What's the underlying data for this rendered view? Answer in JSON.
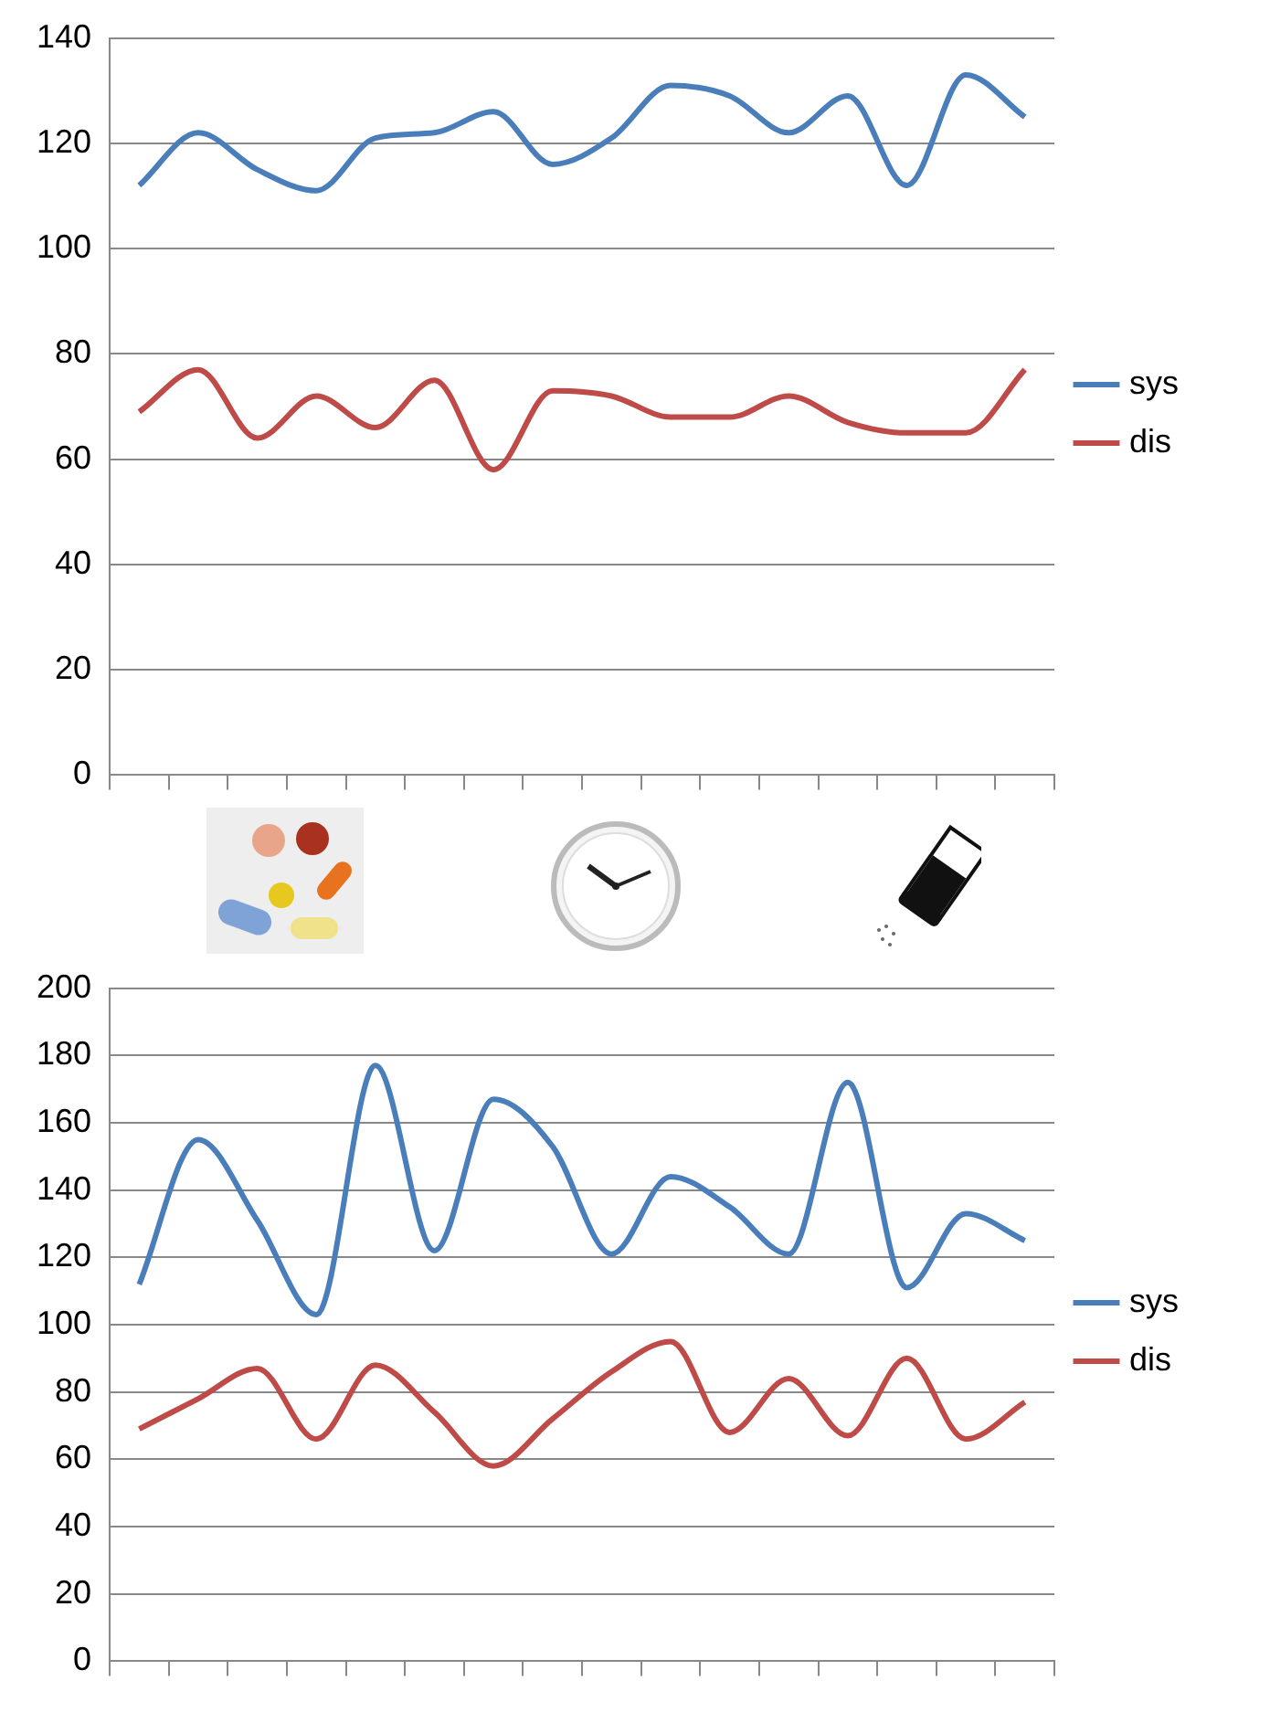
{
  "chart_data": [
    {
      "type": "line",
      "categories": [
        null,
        null,
        null,
        null,
        null,
        null,
        null,
        null,
        null,
        null,
        null,
        null,
        null,
        null,
        null,
        null
      ],
      "series": [
        {
          "name": "sys",
          "color": "#4a7ebb",
          "values": [
            112,
            122,
            115,
            111,
            121,
            122,
            126,
            116,
            121,
            131,
            129,
            122,
            129,
            112,
            133,
            125
          ]
        },
        {
          "name": "dis",
          "color": "#be4b48",
          "values": [
            69,
            77,
            64,
            72,
            66,
            75,
            58,
            73,
            72,
            68,
            68,
            72,
            67,
            65,
            65,
            77
          ]
        }
      ],
      "ylim": [
        0,
        140
      ],
      "yticks": [
        0,
        20,
        40,
        60,
        80,
        100,
        120,
        140
      ],
      "grid": "y",
      "legend": "right",
      "marker": "none",
      "tick_labels": "y"
    },
    {
      "type": "line",
      "categories": [
        null,
        null,
        null,
        null,
        null,
        null,
        null,
        null,
        null,
        null,
        null,
        null,
        null,
        null,
        null,
        null
      ],
      "series": [
        {
          "name": "sys",
          "color": "#4a7ebb",
          "values": [
            112,
            155,
            131,
            103,
            177,
            122,
            167,
            153,
            121,
            144,
            135,
            121,
            172,
            111,
            133,
            125
          ]
        },
        {
          "name": "dis",
          "color": "#be4b48",
          "values": [
            69,
            78,
            87,
            66,
            88,
            74,
            58,
            72,
            86,
            95,
            68,
            84,
            67,
            90,
            66,
            77
          ]
        }
      ],
      "ylim": [
        0,
        200
      ],
      "yticks": [
        0,
        20,
        40,
        60,
        80,
        100,
        120,
        140,
        160,
        180,
        200
      ],
      "grid": "y",
      "legend": "right",
      "marker": "none",
      "tick_labels": "y"
    }
  ]
}
